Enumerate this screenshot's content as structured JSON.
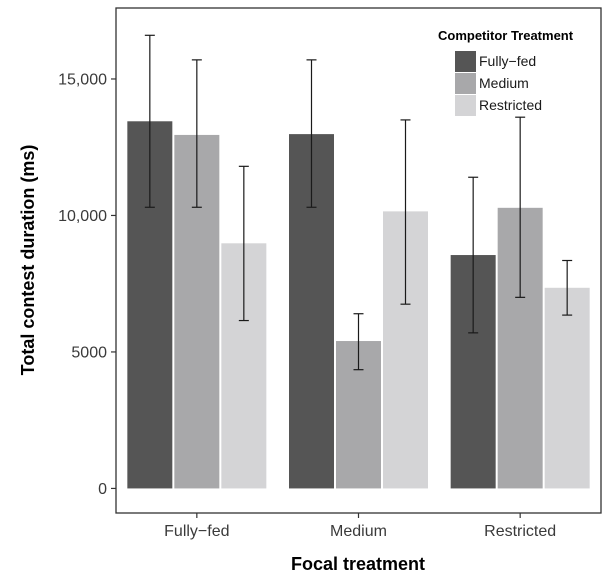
{
  "chart_data": {
    "type": "bar",
    "title": "",
    "xlabel": "Focal treatment",
    "ylabel": "Total contest duration (ms)",
    "categories": [
      "Fully−fed",
      "Medium",
      "Restricted"
    ],
    "ylim": [
      -900,
      17600
    ],
    "yticks": [
      0,
      5000,
      10000,
      15000
    ],
    "ytick_labels": [
      "0",
      "5000",
      "10,000",
      "15,000"
    ],
    "grid": false,
    "legend": {
      "title": "Competitor Treatment",
      "position": "top-right"
    },
    "series": [
      {
        "name": "Fully−fed",
        "color": "#555555",
        "values": [
          13450,
          12980,
          8550
        ],
        "error_low": [
          10300,
          10300,
          5700
        ],
        "error_high": [
          16600,
          15700,
          11400
        ]
      },
      {
        "name": "Medium",
        "color": "#a8a8aa",
        "values": [
          12950,
          5400,
          10280
        ],
        "error_low": [
          10300,
          4350,
          7000
        ],
        "error_high": [
          15700,
          6400,
          13600
        ]
      },
      {
        "name": "Restricted",
        "color": "#d4d4d6",
        "values": [
          8980,
          10150,
          7350
        ],
        "error_low": [
          6150,
          6750,
          6350
        ],
        "error_high": [
          11800,
          13500,
          8350
        ]
      }
    ]
  }
}
